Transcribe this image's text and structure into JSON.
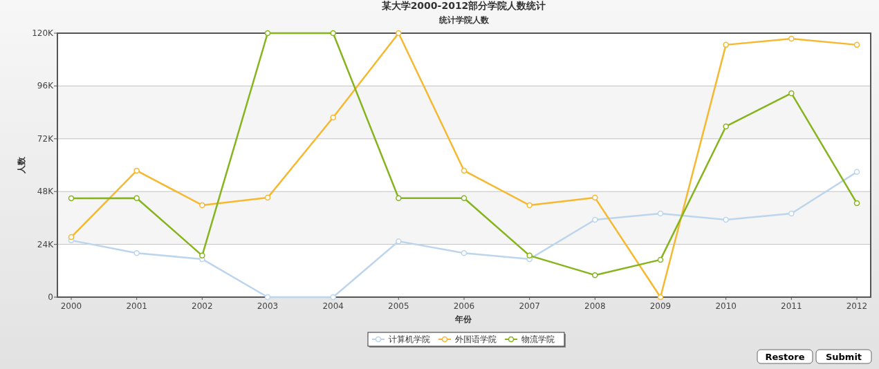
{
  "chart_data": {
    "type": "line",
    "title": "某大学2000-2012部分学院人数统计",
    "subtitle": "统计学院人数",
    "xlabel": "年份",
    "ylabel": "人数",
    "categories": [
      "2000",
      "2001",
      "2002",
      "2003",
      "2004",
      "2005",
      "2006",
      "2007",
      "2008",
      "2009",
      "2010",
      "2011",
      "2012"
    ],
    "series": [
      {
        "name": "计算机学院",
        "color": "#bcd5ec",
        "values": [
          25800,
          20000,
          17300,
          0,
          0,
          25400,
          20000,
          17300,
          35200,
          38000,
          35200,
          38000,
          56900
        ]
      },
      {
        "name": "外国语学院",
        "color": "#f5b82e",
        "values": [
          27300,
          57500,
          41800,
          45200,
          81700,
          120000,
          57500,
          41800,
          45200,
          0,
          114700,
          117500,
          114700
        ]
      },
      {
        "name": "物流学院",
        "color": "#86b41c",
        "values": [
          44900,
          45000,
          18900,
          120000,
          120000,
          45000,
          45000,
          18900,
          10000,
          17000,
          77600,
          92700,
          42700
        ]
      }
    ],
    "ylim": [
      0,
      120000
    ],
    "yticks": [
      0,
      {
        "value": 24000,
        "label": "24K"
      },
      {
        "value": 48000,
        "label": "48K"
      },
      {
        "value": 72000,
        "label": "72K"
      },
      {
        "value": 96000,
        "label": "96K"
      },
      {
        "value": 120000,
        "label": "120K"
      }
    ],
    "grid": "y",
    "legend": "bottom",
    "marker": "circle",
    "line_style": "solid",
    "annotations": [
      "Restore",
      "Submit"
    ]
  }
}
